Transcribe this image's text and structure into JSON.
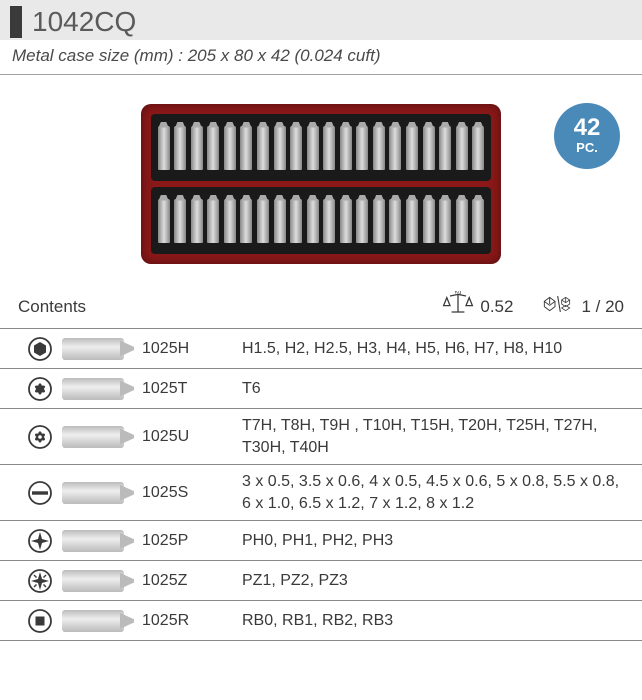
{
  "header": {
    "title": "1042CQ"
  },
  "subtitle": "Metal case size (mm) : 205 x 80 x 42 (0.024 cuft)",
  "badge": {
    "count": "42",
    "unit": "PC."
  },
  "hero": {
    "bits_per_row": 20
  },
  "info": {
    "contents_label": "Contents",
    "weight_kg": "0.52",
    "pack": "1 / 20"
  },
  "colors": {
    "badge_bg": "#4a8ab8",
    "case_bg": "#8a1818",
    "header_bg": "#e9e9e9",
    "rule": "#888888",
    "text": "#3a3a3a"
  },
  "rows": [
    {
      "icon": "hex",
      "code": "1025H",
      "sizes": "H1.5, H2, H2.5, H3, H4, H5, H6, H7, H8, H10"
    },
    {
      "icon": "torx",
      "code": "1025T",
      "sizes": "T6"
    },
    {
      "icon": "torx-sec",
      "code": "1025U",
      "sizes": "T7H, T8H, T9H , T10H, T15H, T20H, T25H, T27H, T30H, T40H"
    },
    {
      "icon": "slot",
      "code": "1025S",
      "sizes": "3 x 0.5, 3.5 x 0.6, 4 x 0.5, 4.5 x 0.6, 5 x 0.8, 5.5 x 0.8, 6 x 1.0, 6.5 x 1.2, 7 x 1.2, 8 x 1.2"
    },
    {
      "icon": "phillips",
      "code": "1025P",
      "sizes": "PH0, PH1, PH2, PH3"
    },
    {
      "icon": "pozi",
      "code": "1025Z",
      "sizes": "PZ1, PZ2, PZ3"
    },
    {
      "icon": "robertson",
      "code": "1025R",
      "sizes": "RB0, RB1, RB2, RB3"
    }
  ]
}
